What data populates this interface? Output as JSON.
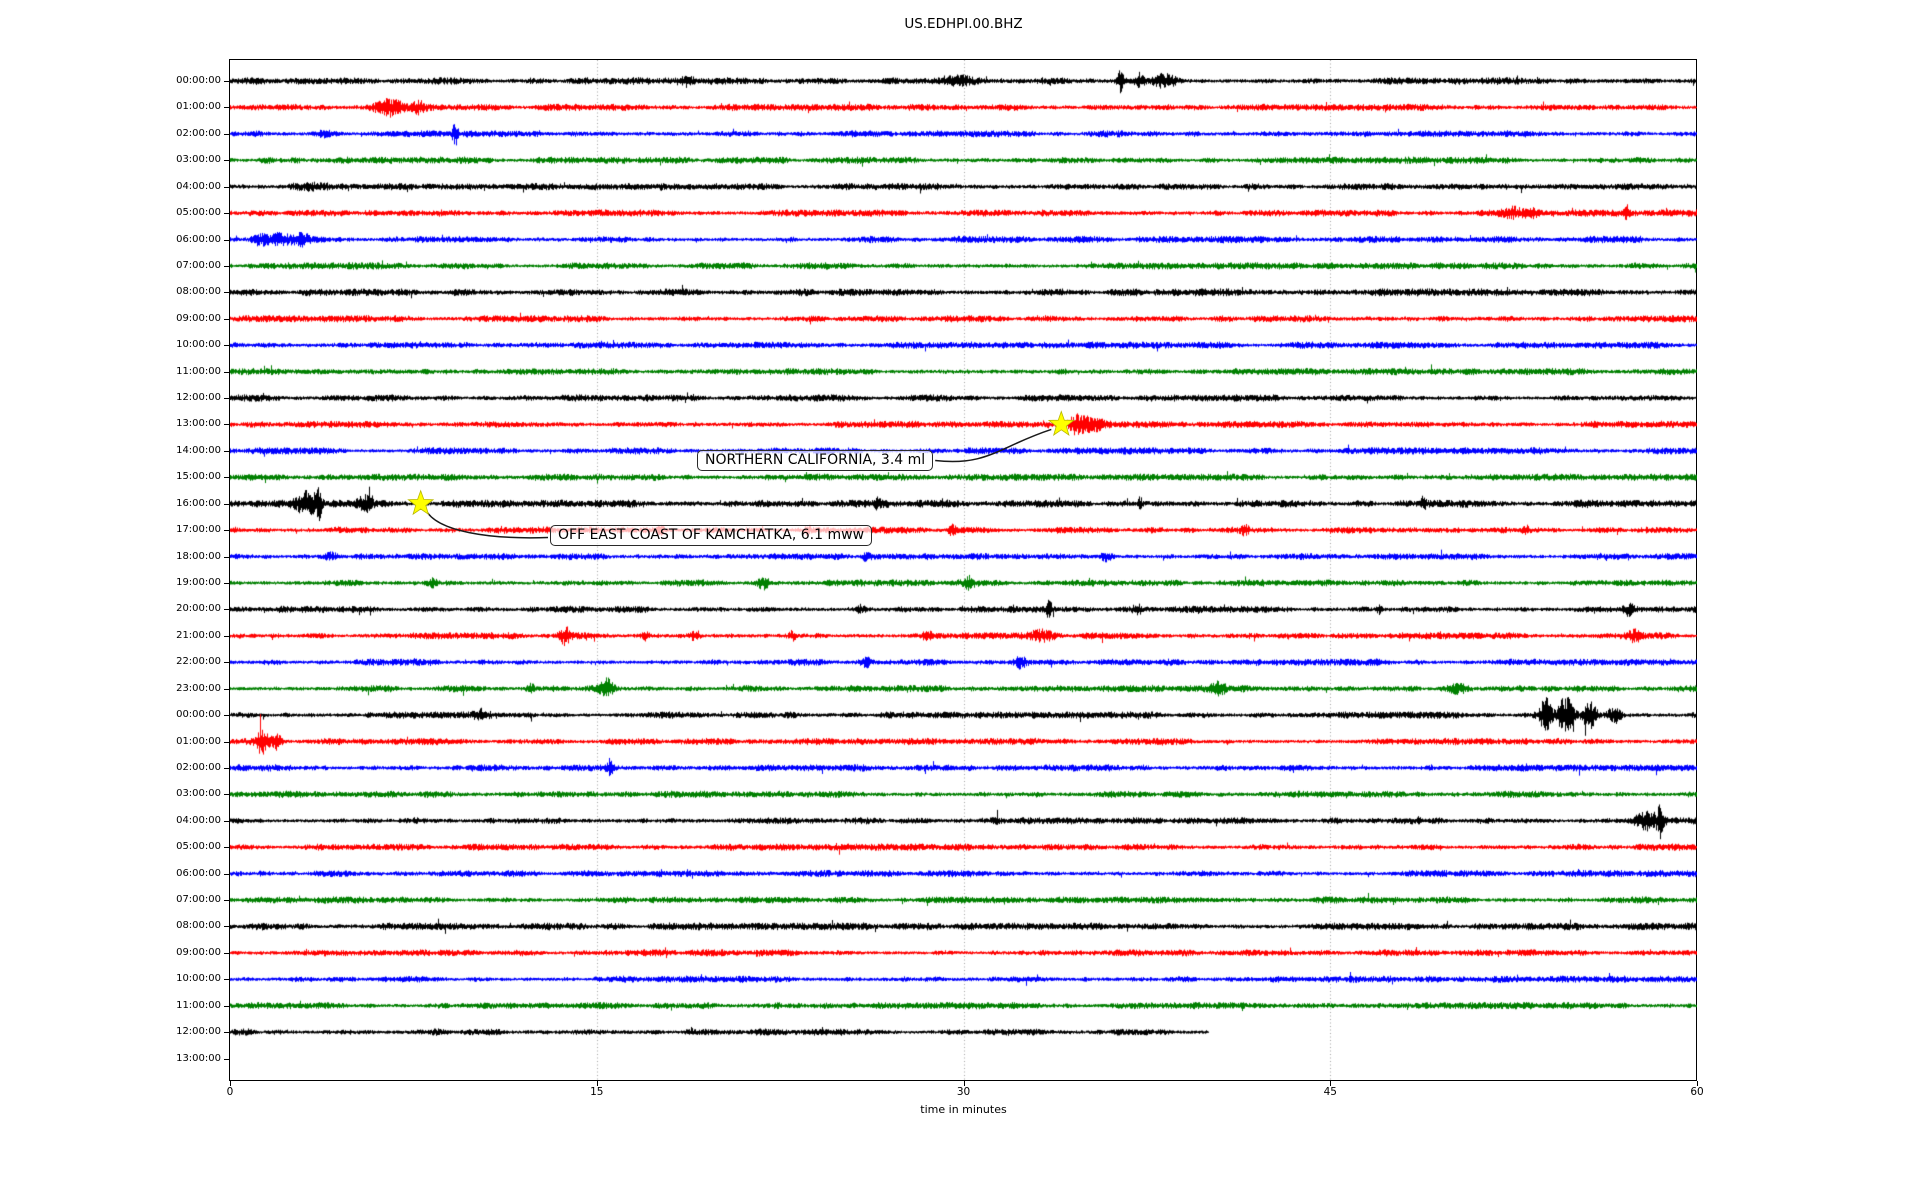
{
  "chart_data": {
    "type": "line",
    "subtype": "seismogram-helicorder-dayplot",
    "title": "US.EDHPI.00.BHZ",
    "xlabel": "time in minutes",
    "x_range": [
      0,
      60
    ],
    "x_ticks": [
      0,
      15,
      30,
      45,
      60
    ],
    "grid": {
      "vertical_minutes": [
        15,
        30,
        45
      ],
      "style": "dotted",
      "color": "#a0a0a0"
    },
    "trace_color_cycle": [
      "#000000",
      "#ff0000",
      "#0000ff",
      "#008000"
    ],
    "marker_color": "#ffff00",
    "rows": [
      {
        "label": "00:00:00",
        "color": "#000000",
        "end_minute": 60,
        "base": 2.6,
        "bursts": [
          [
            18.7,
            0.3,
            3
          ],
          [
            29.8,
            1.0,
            4
          ],
          [
            36.4,
            0.15,
            11
          ],
          [
            37.2,
            0.2,
            6
          ],
          [
            38.2,
            0.45,
            7
          ]
        ]
      },
      {
        "label": "01:00:00",
        "color": "#ff0000",
        "end_minute": 60,
        "base": 2.4,
        "bursts": [
          [
            6.6,
            0.7,
            7
          ],
          [
            7.7,
            0.25,
            5
          ]
        ]
      },
      {
        "label": "02:00:00",
        "color": "#0000ff",
        "end_minute": 60,
        "base": 2.4,
        "bursts": [
          [
            3.9,
            0.5,
            3
          ],
          [
            9.2,
            0.12,
            11
          ]
        ]
      },
      {
        "label": "03:00:00",
        "color": "#008000",
        "end_minute": 60,
        "base": 2.4,
        "bursts": []
      },
      {
        "label": "04:00:00",
        "color": "#000000",
        "end_minute": 60,
        "base": 2.4,
        "bursts": [
          [
            3.4,
            0.6,
            2
          ]
        ]
      },
      {
        "label": "05:00:00",
        "color": "#ff0000",
        "end_minute": 60,
        "base": 2.4,
        "bursts": [
          [
            52.4,
            0.4,
            5
          ],
          [
            53.2,
            0.35,
            4
          ],
          [
            57.1,
            0.1,
            7
          ]
        ]
      },
      {
        "label": "06:00:00",
        "color": "#0000ff",
        "end_minute": 60,
        "base": 2.4,
        "bursts": [
          [
            1.2,
            0.3,
            6
          ],
          [
            2.0,
            0.5,
            6
          ],
          [
            2.9,
            0.3,
            5
          ]
        ]
      },
      {
        "label": "07:00:00",
        "color": "#008000",
        "end_minute": 60,
        "base": 2.4,
        "bursts": []
      },
      {
        "label": "08:00:00",
        "color": "#000000",
        "end_minute": 60,
        "base": 2.6,
        "bursts": []
      },
      {
        "label": "09:00:00",
        "color": "#ff0000",
        "end_minute": 60,
        "base": 2.4,
        "bursts": []
      },
      {
        "label": "10:00:00",
        "color": "#0000ff",
        "end_minute": 60,
        "base": 2.4,
        "bursts": []
      },
      {
        "label": "11:00:00",
        "color": "#008000",
        "end_minute": 60,
        "base": 2.4,
        "bursts": []
      },
      {
        "label": "12:00:00",
        "color": "#000000",
        "end_minute": 60,
        "base": 2.4,
        "bursts": []
      },
      {
        "label": "13:00:00",
        "color": "#ff0000",
        "end_minute": 60,
        "base": 2.4,
        "bursts": [
          [
            34.6,
            0.3,
            8
          ],
          [
            35.3,
            0.5,
            7
          ]
        ]
      },
      {
        "label": "14:00:00",
        "color": "#0000ff",
        "end_minute": 60,
        "base": 2.4,
        "bursts": []
      },
      {
        "label": "15:00:00",
        "color": "#008000",
        "end_minute": 60,
        "base": 2.4,
        "bursts": []
      },
      {
        "label": "16:00:00",
        "color": "#000000",
        "end_minute": 60,
        "base": 2.7,
        "bursts": [
          [
            3.1,
            0.4,
            11
          ],
          [
            3.6,
            0.15,
            14
          ],
          [
            5.5,
            0.3,
            7
          ],
          [
            26.5,
            0.15,
            4
          ],
          [
            37.2,
            0.1,
            6
          ],
          [
            48.8,
            0.1,
            5
          ]
        ]
      },
      {
        "label": "17:00:00",
        "color": "#ff0000",
        "end_minute": 60,
        "base": 2.4,
        "bursts": [
          [
            17.6,
            0.15,
            5
          ],
          [
            23.6,
            0.15,
            4
          ],
          [
            29.5,
            0.15,
            5
          ],
          [
            41.5,
            0.15,
            5
          ],
          [
            53.0,
            0.15,
            4
          ]
        ]
      },
      {
        "label": "18:00:00",
        "color": "#0000ff",
        "end_minute": 60,
        "base": 2.4,
        "bursts": [
          [
            4.1,
            0.3,
            4
          ],
          [
            26.0,
            0.2,
            3
          ],
          [
            35.8,
            0.2,
            3
          ]
        ]
      },
      {
        "label": "19:00:00",
        "color": "#008000",
        "end_minute": 60,
        "base": 2.4,
        "bursts": [
          [
            8.3,
            0.2,
            4
          ],
          [
            21.8,
            0.25,
            6
          ],
          [
            30.2,
            0.2,
            5
          ]
        ]
      },
      {
        "label": "20:00:00",
        "color": "#000000",
        "end_minute": 60,
        "base": 2.4,
        "bursts": [
          [
            25.8,
            0.2,
            4
          ],
          [
            33.5,
            0.12,
            9
          ],
          [
            37.1,
            0.15,
            4
          ],
          [
            47.0,
            0.1,
            4
          ],
          [
            57.2,
            0.2,
            5
          ]
        ]
      },
      {
        "label": "21:00:00",
        "color": "#ff0000",
        "end_minute": 60,
        "base": 2.4,
        "bursts": [
          [
            13.7,
            0.2,
            9
          ],
          [
            17.0,
            0.15,
            4
          ],
          [
            19.0,
            0.2,
            4
          ],
          [
            23.0,
            0.15,
            4
          ],
          [
            28.5,
            0.2,
            5
          ],
          [
            33.2,
            0.5,
            5
          ],
          [
            57.4,
            0.3,
            5
          ]
        ]
      },
      {
        "label": "22:00:00",
        "color": "#0000ff",
        "end_minute": 60,
        "base": 2.4,
        "bursts": [
          [
            26.0,
            0.2,
            4
          ],
          [
            32.3,
            0.25,
            5
          ]
        ]
      },
      {
        "label": "23:00:00",
        "color": "#008000",
        "end_minute": 60,
        "base": 2.4,
        "bursts": [
          [
            12.3,
            0.15,
            4
          ],
          [
            15.4,
            0.3,
            10
          ],
          [
            40.4,
            0.3,
            5
          ],
          [
            50.2,
            0.4,
            5
          ]
        ]
      },
      {
        "label": "00:00:00",
        "color": "#000000",
        "end_minute": 60,
        "base": 2.4,
        "bursts": [
          [
            10.3,
            0.3,
            4
          ],
          [
            53.8,
            0.25,
            15
          ],
          [
            54.6,
            0.3,
            18
          ],
          [
            55.6,
            0.3,
            13
          ],
          [
            56.6,
            0.3,
            8
          ]
        ]
      },
      {
        "label": "01:00:00",
        "color": "#ff0000",
        "end_minute": 60,
        "base": 2.4,
        "bursts": [
          [
            1.3,
            0.25,
            11
          ],
          [
            1.9,
            0.2,
            8
          ]
        ]
      },
      {
        "label": "02:00:00",
        "color": "#0000ff",
        "end_minute": 60,
        "base": 2.4,
        "bursts": [
          [
            15.5,
            0.15,
            7
          ]
        ]
      },
      {
        "label": "03:00:00",
        "color": "#008000",
        "end_minute": 60,
        "base": 2.4,
        "bursts": []
      },
      {
        "label": "04:00:00",
        "color": "#000000",
        "end_minute": 60,
        "base": 2.4,
        "bursts": [
          [
            31.3,
            0.2,
            3
          ],
          [
            58.0,
            0.5,
            9
          ],
          [
            58.5,
            0.12,
            14
          ]
        ]
      },
      {
        "label": "05:00:00",
        "color": "#ff0000",
        "end_minute": 60,
        "base": 2.4,
        "bursts": []
      },
      {
        "label": "06:00:00",
        "color": "#0000ff",
        "end_minute": 60,
        "base": 2.4,
        "bursts": []
      },
      {
        "label": "07:00:00",
        "color": "#008000",
        "end_minute": 60,
        "base": 2.4,
        "bursts": []
      },
      {
        "label": "08:00:00",
        "color": "#000000",
        "end_minute": 60,
        "base": 2.6,
        "bursts": []
      },
      {
        "label": "09:00:00",
        "color": "#ff0000",
        "end_minute": 60,
        "base": 2.4,
        "bursts": []
      },
      {
        "label": "10:00:00",
        "color": "#0000ff",
        "end_minute": 60,
        "base": 2.4,
        "bursts": []
      },
      {
        "label": "11:00:00",
        "color": "#008000",
        "end_minute": 60,
        "base": 2.4,
        "bursts": []
      },
      {
        "label": "12:00:00",
        "color": "#000000",
        "end_minute": 40,
        "base": 2.4,
        "bursts": []
      },
      {
        "label": "13:00:00",
        "color": "#ff0000",
        "end_minute": 0,
        "base": 2.4,
        "bursts": []
      }
    ],
    "events": [
      {
        "label": "NORTHERN CALIFORNIA, 3.4 ml",
        "row_index": 13,
        "row_time": "13:00:00",
        "minute": 34.0,
        "marker": "star",
        "marker_color": "#ffff00"
      },
      {
        "label": "OFF EAST COAST OF KAMCHATKA, 6.1 mww",
        "row_index": 16,
        "row_time": "16:00:00",
        "minute": 7.8,
        "marker": "star",
        "marker_color": "#ffff00"
      }
    ]
  }
}
